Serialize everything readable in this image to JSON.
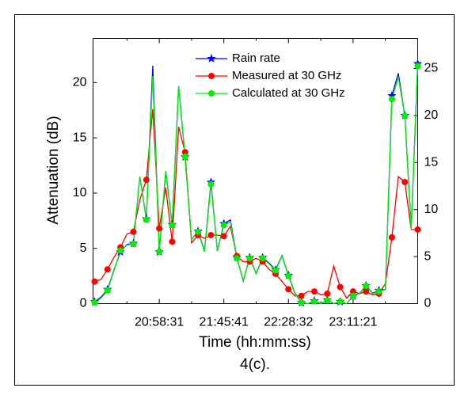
{
  "chart_data": {
    "type": "line",
    "categories": [
      null,
      null,
      null,
      null,
      null,
      null,
      null,
      null,
      null,
      null,
      "20:58:31",
      null,
      null,
      null,
      null,
      null,
      null,
      null,
      null,
      null,
      "21:45:41",
      null,
      null,
      null,
      null,
      null,
      null,
      null,
      null,
      null,
      "22:28:32",
      null,
      null,
      null,
      null,
      null,
      null,
      null,
      null,
      null,
      "23:11:21",
      null,
      null,
      null,
      null,
      null,
      null,
      null,
      null,
      null,
      null
    ],
    "series": [
      {
        "name": "Rain rate",
        "color": "#0000ff",
        "marker": "star",
        "axis": "y2",
        "values": [
          0.2,
          0.7,
          1.5,
          3.6,
          5.5,
          6.3,
          6.4,
          13.5,
          9.0,
          25.3,
          5.5,
          14.1,
          8.4,
          23.1,
          15.6,
          6.8,
          7.7,
          5.6,
          12.9,
          5.6,
          8.5,
          8.9,
          4.9,
          2.4,
          4.9,
          3.2,
          4.9,
          4.3,
          3.6,
          5.1,
          3.0,
          1.1,
          0.1,
          0,
          0.3,
          0,
          0.4,
          0,
          0.2,
          0,
          0.8,
          1.1,
          1.9,
          1.1,
          1.4,
          1.5,
          22.1,
          24.5,
          20.0,
          8.1,
          25.5
        ]
      },
      {
        "name": "Measured at 30 GHz",
        "color": "#ff0000",
        "marker": "circle",
        "values": [
          2.0,
          2.2,
          3.1,
          4.2,
          5.1,
          6.3,
          6.5,
          9.4,
          11.2,
          17.6,
          6.8,
          10.5,
          5.6,
          16.0,
          13.7,
          5.5,
          6.2,
          5.9,
          6.2,
          6.2,
          6.1,
          7.0,
          4.3,
          3.8,
          3.8,
          4.1,
          3.8,
          3.1,
          2.7,
          2.0,
          1.3,
          0.7,
          0.7,
          1.1,
          1.1,
          0.8,
          0.9,
          3.4,
          1.5,
          0.5,
          1.1,
          0.9,
          1.1,
          0.8,
          0.9,
          1.8,
          6.0,
          11.5,
          11.0,
          6.7,
          6.7
        ]
      },
      {
        "name": "Calculated at 30 GHz",
        "color": "#00ee00",
        "marker": "circle",
        "values": [
          0.1,
          0.5,
          1.2,
          3.0,
          4.8,
          5.3,
          5.4,
          11.5,
          7.6,
          20.6,
          4.7,
          12.0,
          7.1,
          19.7,
          13.3,
          5.8,
          6.5,
          4.7,
          10.8,
          4.8,
          7.1,
          7.4,
          4.1,
          2.1,
          4.1,
          2.7,
          4.1,
          3.6,
          3.0,
          4.3,
          2.5,
          0.9,
          0.1,
          0,
          0.2,
          0,
          0.3,
          0,
          0.2,
          0,
          0.7,
          0.9,
          1.6,
          0.9,
          1.1,
          1.3,
          18.5,
          20.5,
          17.0,
          6.7,
          21.5
        ]
      }
    ],
    "ylabel": "Attenuation (dB)",
    "xlabel": "Time (hh:mm:ss)",
    "caption": "4(c).",
    "ylim": [
      0,
      24
    ],
    "yticks": [
      0,
      5,
      10,
      15,
      20
    ],
    "y2lim": [
      0,
      28.2
    ],
    "y2ticks": [
      0,
      5,
      10,
      15,
      20,
      25
    ],
    "legend": "top"
  }
}
